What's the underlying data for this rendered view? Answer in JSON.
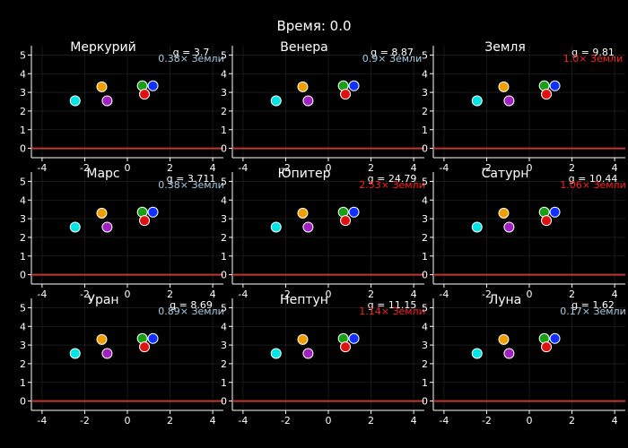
{
  "figure": {
    "title": "Время: 0.0"
  },
  "colors": {
    "background": "#000000",
    "axis": "#ffffff",
    "grid": "#2a2a2a",
    "ground": "#c0392b",
    "ratio_below": "#a9cce3",
    "ratio_above": "#ff2020"
  },
  "chart_data": {
    "type": "scatter",
    "title": "Время: 0.0",
    "xlim": [
      -4.5,
      4.5
    ],
    "ylim": [
      -0.5,
      5.5
    ],
    "xticks": [
      -4,
      -2,
      0,
      2,
      4
    ],
    "yticks": [
      0,
      1,
      2,
      3,
      4,
      5
    ],
    "ground_y": 0,
    "points": [
      {
        "x": -2.45,
        "y": 2.55,
        "color": "#00e5e5"
      },
      {
        "x": -1.2,
        "y": 3.3,
        "color": "#f0a000"
      },
      {
        "x": -0.95,
        "y": 2.55,
        "color": "#a020c0"
      },
      {
        "x": 0.7,
        "y": 3.35,
        "color": "#16a016"
      },
      {
        "x": 0.8,
        "y": 2.9,
        "color": "#e01010"
      },
      {
        "x": 1.2,
        "y": 3.35,
        "color": "#1030ff"
      }
    ],
    "panels": [
      {
        "name": "Меркурий",
        "g": "g = 3.7",
        "ratio": "0.38× Земли",
        "above": false
      },
      {
        "name": "Венера",
        "g": "g = 8.87",
        "ratio": "0.9× Земли",
        "above": false
      },
      {
        "name": "Земля",
        "g": "g = 9.81",
        "ratio": "1.0× Земли",
        "above": true
      },
      {
        "name": "Марс",
        "g": "g = 3.711",
        "ratio": "0.38× Земли",
        "above": false
      },
      {
        "name": "Юпитер",
        "g": "g = 24.79",
        "ratio": "2.53× Земли",
        "above": true
      },
      {
        "name": "Сатурн",
        "g": "g = 10.44",
        "ratio": "1.06× Земли",
        "above": true
      },
      {
        "name": "Уран",
        "g": "g = 8.69",
        "ratio": "0.89× Земли",
        "above": false
      },
      {
        "name": "Нептун",
        "g": "g = 11.15",
        "ratio": "1.14× Земли",
        "above": true
      },
      {
        "name": "Луна",
        "g": "g = 1.62",
        "ratio": "0.17× Земли",
        "above": false
      }
    ]
  }
}
